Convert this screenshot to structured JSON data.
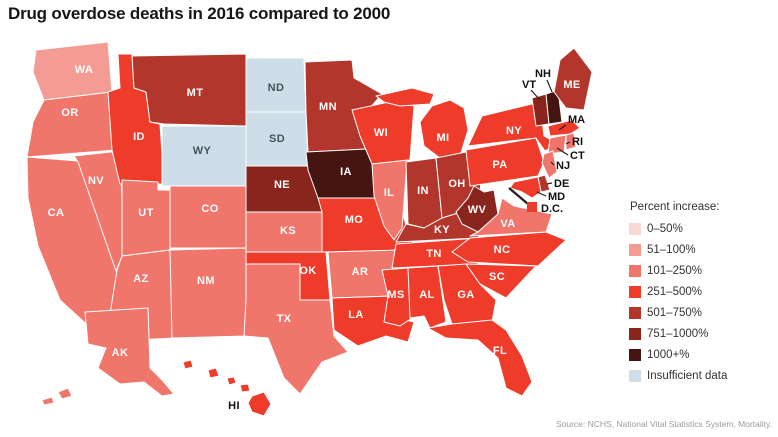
{
  "chart_data": {
    "type": "choropleth",
    "title": "Drug overdose deaths in 2016 compared to 2000",
    "legend_title": "Percent increase:",
    "source": "Source: NCHS, National Vital Statistics System, Mortality.",
    "buckets": [
      {
        "label": "0–50%",
        "color": "#f9d9d5"
      },
      {
        "label": "51–100%",
        "color": "#f49c94"
      },
      {
        "label": "101–250%",
        "color": "#f0756a"
      },
      {
        "label": "251–500%",
        "color": "#ee3b2a"
      },
      {
        "label": "501–750%",
        "color": "#b2362b"
      },
      {
        "label": "751–1000%",
        "color": "#8a251e"
      },
      {
        "label": "1000+%",
        "color": "#451511"
      },
      {
        "label": "Insufficient data",
        "color": "#cddee9"
      }
    ],
    "states": [
      {
        "abbr": "WA",
        "label": "WA",
        "value": "51–100%"
      },
      {
        "abbr": "OR",
        "label": "OR",
        "value": "101–250%"
      },
      {
        "abbr": "CA",
        "label": "CA",
        "value": "101–250%"
      },
      {
        "abbr": "NV",
        "label": "NV",
        "value": "101–250%"
      },
      {
        "abbr": "ID",
        "label": "ID",
        "value": "251–500%"
      },
      {
        "abbr": "MT",
        "label": "MT",
        "value": "501–750%"
      },
      {
        "abbr": "WY",
        "label": "WY",
        "value": "Insufficient data"
      },
      {
        "abbr": "UT",
        "label": "UT",
        "value": "101–250%"
      },
      {
        "abbr": "CO",
        "label": "CO",
        "value": "101–250%"
      },
      {
        "abbr": "AZ",
        "label": "AZ",
        "value": "101–250%"
      },
      {
        "abbr": "NM",
        "label": "NM",
        "value": "101–250%"
      },
      {
        "abbr": "ND",
        "label": "ND",
        "value": "Insufficient data"
      },
      {
        "abbr": "SD",
        "label": "SD",
        "value": "Insufficient data"
      },
      {
        "abbr": "NE",
        "label": "NE",
        "value": "751–1000%"
      },
      {
        "abbr": "KS",
        "label": "KS",
        "value": "101–250%"
      },
      {
        "abbr": "OK",
        "label": "OK",
        "value": "251–500%"
      },
      {
        "abbr": "TX",
        "label": "TX",
        "value": "101–250%"
      },
      {
        "abbr": "MN",
        "label": "MN",
        "value": "501–750%"
      },
      {
        "abbr": "IA",
        "label": "IA",
        "value": "1000+%"
      },
      {
        "abbr": "MO",
        "label": "MO",
        "value": "251–500%"
      },
      {
        "abbr": "AR",
        "label": "AR",
        "value": "101–250%"
      },
      {
        "abbr": "LA",
        "label": "LA",
        "value": "251–500%"
      },
      {
        "abbr": "WI",
        "label": "WI",
        "value": "251–500%"
      },
      {
        "abbr": "IL",
        "label": "IL",
        "value": "101–250%"
      },
      {
        "abbr": "MI",
        "label": "MI",
        "value": "251–500%"
      },
      {
        "abbr": "IN",
        "label": "IN",
        "value": "501–750%"
      },
      {
        "abbr": "OH",
        "label": "OH",
        "value": "501–750%"
      },
      {
        "abbr": "KY",
        "label": "KY",
        "value": "501–750%"
      },
      {
        "abbr": "TN",
        "label": "TN",
        "value": "251–500%"
      },
      {
        "abbr": "MS",
        "label": "MS",
        "value": "251–500%"
      },
      {
        "abbr": "AL",
        "label": "AL",
        "value": "251–500%"
      },
      {
        "abbr": "GA",
        "label": "GA",
        "value": "251–500%"
      },
      {
        "abbr": "FL",
        "label": "FL",
        "value": "251–500%"
      },
      {
        "abbr": "NC",
        "label": "NC",
        "value": "251–500%"
      },
      {
        "abbr": "SC",
        "label": "SC",
        "value": "251–500%"
      },
      {
        "abbr": "WV",
        "label": "WV",
        "value": "751–1000%"
      },
      {
        "abbr": "VA",
        "label": "VA",
        "value": "101–250%"
      },
      {
        "abbr": "PA",
        "label": "PA",
        "value": "251–500%"
      },
      {
        "abbr": "NY",
        "label": "NY",
        "value": "251–500%"
      },
      {
        "abbr": "VT",
        "label": "VT",
        "value": "751–1000%"
      },
      {
        "abbr": "NH",
        "label": "NH",
        "value": "1000+%"
      },
      {
        "abbr": "ME",
        "label": "ME",
        "value": "501–750%"
      },
      {
        "abbr": "MA",
        "label": "MA",
        "value": "251–500%"
      },
      {
        "abbr": "RI",
        "label": "RI",
        "value": "101–250%"
      },
      {
        "abbr": "CT",
        "label": "CT",
        "value": "101–250%"
      },
      {
        "abbr": "NJ",
        "label": "NJ",
        "value": "101–250%"
      },
      {
        "abbr": "DE",
        "label": "DE",
        "value": "501–750%"
      },
      {
        "abbr": "MD",
        "label": "MD",
        "value": "251–500%"
      },
      {
        "abbr": "DC",
        "label": "D.C.",
        "value": "251–500%"
      },
      {
        "abbr": "AK",
        "label": "AK",
        "value": "101–250%"
      },
      {
        "abbr": "HI",
        "label": "HI",
        "value": "251–500%"
      }
    ]
  }
}
